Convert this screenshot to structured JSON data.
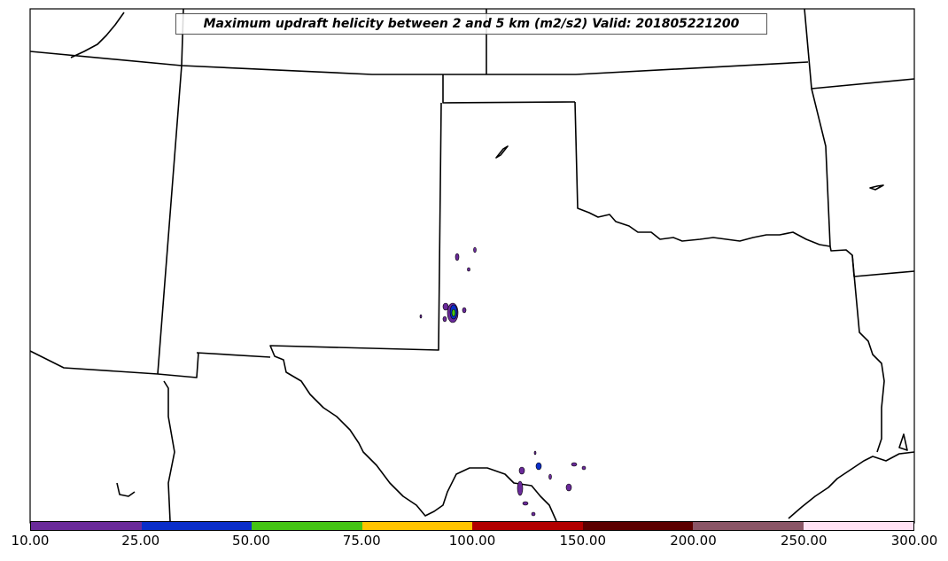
{
  "title": "Maximum updraft helicity between 2 and 5 km (m2/s2) Valid: 201805221200",
  "colorbar": {
    "colors": [
      "#6a2a9a",
      "#0a2ec9",
      "#44c414",
      "#ffc400",
      "#b20000",
      "#5c0000",
      "#8a5566",
      "#ffe2f4"
    ],
    "tick_labels": [
      "10.00",
      "25.00",
      "50.00",
      "75.00",
      "100.00",
      "150.00",
      "200.00",
      "250.00",
      "300.00"
    ]
  }
}
